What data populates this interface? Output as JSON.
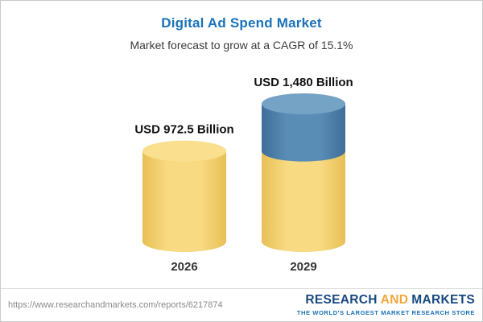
{
  "chart_data": {
    "type": "bar",
    "variant": "cylinder",
    "title": "Digital Ad Spend Market",
    "subtitle": "Market forecast to grow at a CAGR of 15.1%",
    "categories": [
      "2026",
      "2029"
    ],
    "values": [
      972.5,
      1480
    ],
    "value_labels": [
      "USD 972.5 Billion",
      "USD 1,480 Billion"
    ],
    "unit": "USD Billion",
    "cagr_percent": 15.1,
    "color_split_value": 972.5,
    "ylim": [
      0,
      1480
    ],
    "legend": "none",
    "grid": "off",
    "colors": {
      "title": "#1B72B8",
      "yellow_center": "#F8DA82",
      "yellow_edge": "#E8BF55",
      "yellow_top": "#F9DF8E",
      "blue_center": "#5A8DB6",
      "blue_edge": "#3E6E99",
      "blue_top": "#74A3C6"
    }
  },
  "footer": {
    "url": "https://www.researchandmarkets.com/reports/6217874",
    "logo": {
      "word1": "RESEARCH",
      "word2": "AND",
      "word3": "MARKETS",
      "tagline": "THE WORLD'S LARGEST MARKET RESEARCH STORE"
    }
  }
}
